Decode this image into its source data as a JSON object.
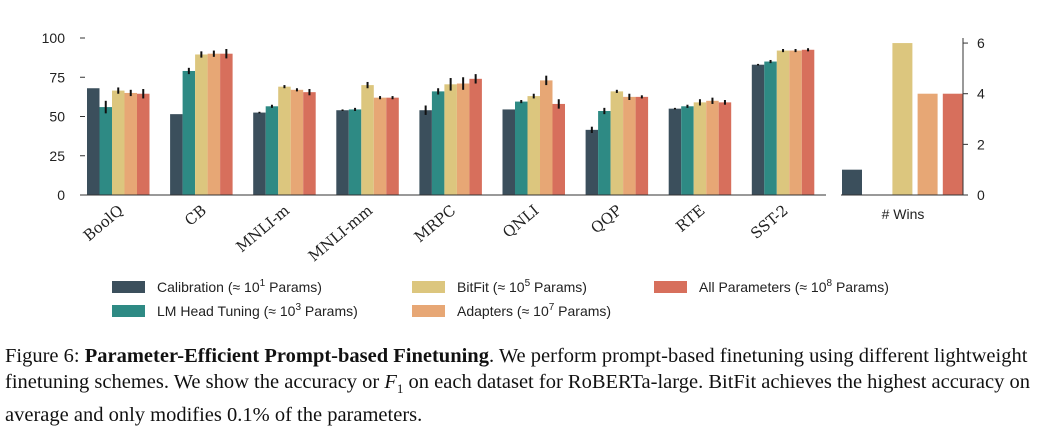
{
  "chart_data": [
    {
      "type": "bar",
      "ylim": [
        0,
        100
      ],
      "yticks": [
        "0",
        "25",
        "50",
        "75",
        "100"
      ],
      "categories": [
        "BoolQ",
        "CB",
        "MNLI-m",
        "MNLI-mm",
        "MRPC",
        "QNLI",
        "QQP",
        "RTE",
        "SST-2"
      ],
      "series": [
        {
          "name": "Calibration (≈ 10",
          "sup": "1",
          "suffix": " Params)",
          "color": "#3b4f5c",
          "values": [
            68,
            51.5,
            52.5,
            54,
            54,
            54.5,
            41.5,
            55,
            83
          ],
          "errors": [
            0,
            0,
            0.5,
            0.5,
            3,
            0,
            2,
            0.5,
            0.5
          ]
        },
        {
          "name": "LM Head Tuning (≈ 10",
          "sup": "3",
          "suffix": " Params)",
          "color": "#2e8a84",
          "values": [
            56,
            79,
            56.5,
            54.5,
            66,
            59.5,
            53.5,
            56.5,
            85
          ],
          "errors": [
            4,
            2,
            1,
            1,
            2,
            1,
            2,
            1,
            1
          ]
        },
        {
          "name": "BitFit (≈ 10",
          "sup": "5",
          "suffix": " Params)",
          "color": "#dcc67e",
          "values": [
            66.5,
            89.5,
            69,
            70,
            70.5,
            63,
            66,
            59,
            92
          ],
          "errors": [
            2,
            2,
            1,
            2,
            4,
            1.5,
            1,
            2,
            1
          ]
        },
        {
          "name": "Adapters (≈ 10",
          "sup": "7",
          "suffix": " Params)",
          "color": "#e7a775",
          "values": [
            65,
            90,
            67,
            62,
            71,
            73,
            62.5,
            60,
            92
          ],
          "errors": [
            2,
            2,
            1,
            1,
            4,
            3,
            2,
            2,
            1
          ]
        },
        {
          "name": "All Parameters (≈ 10",
          "sup": "8",
          "suffix": " Params)",
          "color": "#d76f5c",
          "values": [
            64.5,
            90,
            65.5,
            62,
            74,
            58,
            62.5,
            59,
            92.5
          ],
          "errors": [
            3,
            3,
            2,
            1,
            3,
            3,
            1,
            1.5,
            1
          ]
        }
      ]
    },
    {
      "type": "bar",
      "category": "# Wins",
      "ylim": [
        0,
        6.2
      ],
      "yticks": [
        "0",
        "2",
        "4",
        "6"
      ],
      "values": [
        1,
        0,
        6,
        4,
        4
      ]
    }
  ],
  "caption": {
    "prefix": "Figure 6: ",
    "title": "Parameter-Efficient Prompt-based Finetuning",
    "text1": ". We perform prompt-based finetuning using different lightweight finetuning schemes. We show the accuracy or ",
    "f1_symbol": "F",
    "f1_sub": "1",
    "text2": " on each dataset for RoBERTa-large. BitFit achieves the highest accuracy on average and only modifies 0.1% of the parameters."
  }
}
